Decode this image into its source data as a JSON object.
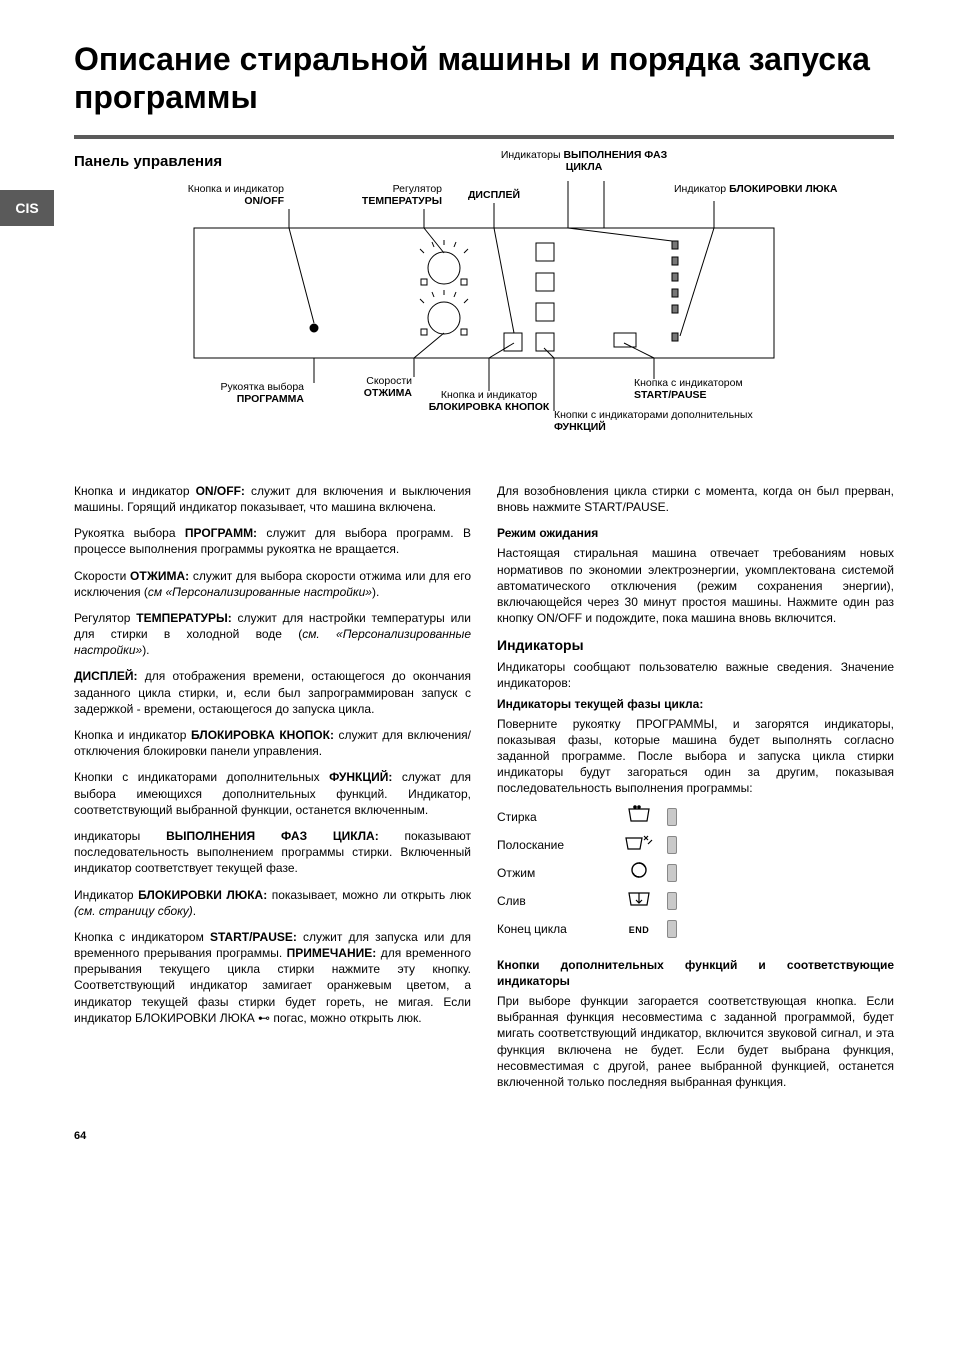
{
  "side_tab": "CIS",
  "page_number": "64",
  "title": "Описание стиральной машины и порядка запуска программы",
  "panel_title": "Панель управления",
  "labels": {
    "phase_ind": {
      "pre": "Индикаторы ",
      "bold": "ВЫПОЛНЕНИЯ ФАЗ",
      "post": "ЦИКЛА"
    },
    "onoff": {
      "pre": "Кнопка и индикатор",
      "bold": "ON/OFF"
    },
    "temp": {
      "pre": "Регулятор",
      "bold": "ТЕМПЕРАТУРЫ"
    },
    "display": {
      "bold": "ДИСПЛЕЙ"
    },
    "lock": {
      "pre": "Индикатор ",
      "bold": "БЛОКИРОВКИ ЛЮКА"
    },
    "program": {
      "pre": "Рукоятка выбора",
      "bold": "ПРОГРАММА"
    },
    "spin": {
      "pre": "Скорости",
      "bold": "ОТЖИМА"
    },
    "keylock": {
      "pre": "Кнопка и индикатор",
      "bold": "БЛОКИРОВКА КНОПОК"
    },
    "startpause": {
      "pre": "Кнопка с индикатором",
      "bold": "START/PAUSE"
    },
    "func": {
      "pre": "Кнопки с индикаторами дополнительных",
      "bold": "ФУНКЦИЙ"
    }
  },
  "left": {
    "p1": "Кнопка и индикатор <b>ON/OFF:</b> служит для включения и выключения машины. Горящий индикатор показывает, что машина включена.",
    "p2": "Рукоятка выбора <b>ПРОГРАММ:</b> служит для выбора программ. В процессе выполнения программы рукоятка не вращается.",
    "p3": "Скорости <b>ОТЖИМА:</b> служит для выбора скорости отжима  или для его исключения (<em>см «Персонализированные настройки»</em>).",
    "p4": "Регулятор <b>ТЕМПЕРАТУРЫ:</b> служит для настройки температуры или для стирки в холодной воде (<em>см. «Персонализированные настройки»</em>).",
    "p5": "<b>ДИСПЛЕЙ:</b> для отображения времени, остающегося до окончания заданного цикла стирки, и, если был запрограммирован запуск с задержкой - времени, остающегося до запуска цикла.",
    "p6": "Кнопка и индикатор <b>БЛОКИРОВКА КНОПОК:</b> служит для включения/отключения блокировки панели управления.",
    "p7": "Кнопки с индикаторами дополнительных <b>ФУНКЦИЙ:</b> служат для выбора имеющихся дополнительных функций. Индикатор, соответствующий выбранной функции, останется включенным.",
    "p8": "индикаторы <b>ВЫПОЛНЕНИЯ ФАЗ ЦИКЛА:</b> показывают последовательность выполнением программы стирки. Включенный индикатор соответствует текущей фазе.",
    "p9": "Индикатор <b>БЛОКИРОВКИ ЛЮКА:</b> показывает, можно ли открыть люк <em>(см. страницу сбоку)</em>.",
    "p10": "Кнопка с индикатором <b>START/PAUSE:</b> служит для запуска или для временного прерывания программы. <b>ПРИМЕЧАНИЕ:</b> для временного прерывания текущего цикла стирки нажмите эту кнопку. Соответствующий индикатор замигает оранжевым цветом, а индикатор текущей фазы стирки будет гореть, не мигая. Если индикатор БЛОКИРОВКИ ЛЮКА ⊷ погас, можно открыть люк."
  },
  "right": {
    "p1": "Для возобновления цикла стирки с момента, когда он был прерван, вновь нажмите START/PAUSE.",
    "sub1": "Режим ожидания",
    "p2": "Настоящая стиральная машина отвечает требованиям новых нормативов по экономии электроэнергии, укомплектована системой автоматического отключения (режим сохранения энергии), включающейся через 30 минут простоя машины. Нажмите один раз кнопку ON/OFF и подождите, пока машина вновь включится.",
    "h3": "Индикаторы",
    "p3": "Индикаторы сообщают пользователю важные сведения. Значение индикаторов:",
    "sub2": "Индикаторы текущей фазы цикла:",
    "p4": "Поверните рукоятку ПРОГРАММЫ, и загорятся индикаторы, показывая фазы, которые машина будет выполнять согласно заданной программе. После выбора и запуска цикла стирки индикаторы будут загораться один за другим, показывая последовательность выполнения программы:",
    "phases": [
      {
        "name": "Стирка",
        "icon": "wash"
      },
      {
        "name": "Полоскание",
        "icon": "rinse"
      },
      {
        "name": "Отжим",
        "icon": "spin"
      },
      {
        "name": "Слив",
        "icon": "drain"
      },
      {
        "name": "Конец цикла",
        "icon": "end"
      }
    ],
    "sub3": "Кнопки дополнительных функций и соответствующие индикаторы",
    "p5": "При выборе функции загорается соответствующая кнопка. Если выбранная функция несовместима с заданной программой, будет мигать соответствующий индикатор, включится звуковой сигнал, и эта функция включена не будет. Если будет выбрана функция, несовместимая с другой, ранее выбранной функцией, останется включенной только последняя выбранная функция."
  },
  "colors": {
    "rule": "#5a5a5a",
    "tab_bg": "#5a5a5a",
    "led_fill": "#c9c9c9",
    "line": "#000000"
  }
}
